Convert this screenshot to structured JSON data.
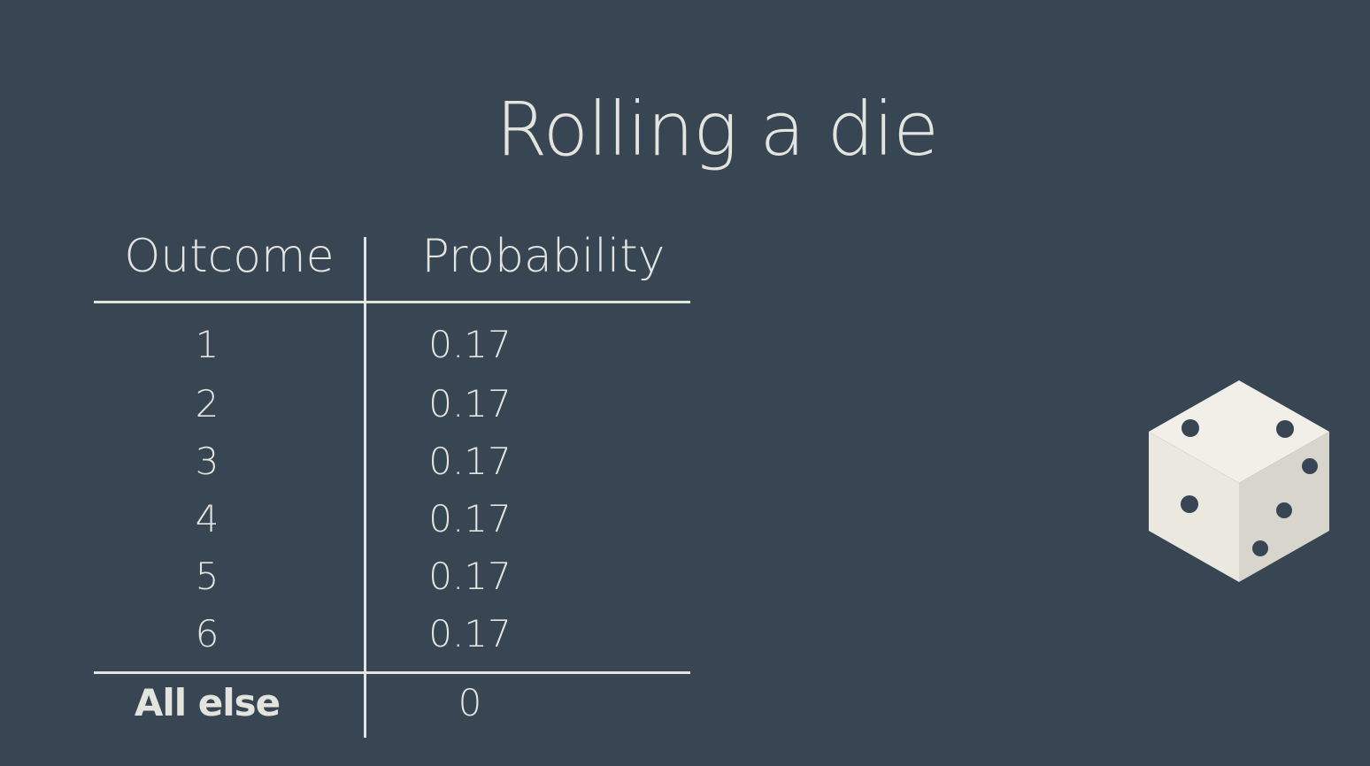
{
  "slide": {
    "title": "Rolling a die"
  },
  "table": {
    "headers": {
      "outcome": "Outcome",
      "probability": "Probability"
    },
    "rows": [
      {
        "outcome": "1",
        "probability": "0.17"
      },
      {
        "outcome": "2",
        "probability": "0.17"
      },
      {
        "outcome": "3",
        "probability": "0.17"
      },
      {
        "outcome": "4",
        "probability": "0.17"
      },
      {
        "outcome": "5",
        "probability": "0.17"
      },
      {
        "outcome": "6",
        "probability": "0.17"
      }
    ],
    "total": {
      "outcome": "All else",
      "probability": "0"
    }
  },
  "colors": {
    "background": "#384654",
    "text": "#e4e4df",
    "die_face": "#f1efe8",
    "die_shadow": "#d8d5cc",
    "pip": "#384654"
  },
  "icons": {
    "die": "die-icon"
  }
}
